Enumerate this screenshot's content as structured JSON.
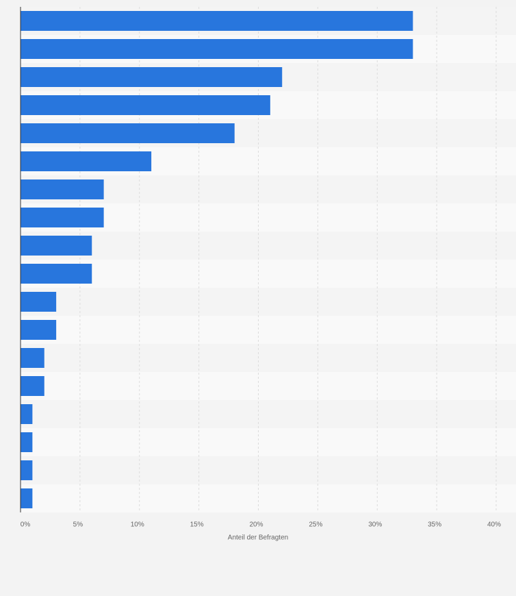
{
  "chart_data": {
    "type": "barh",
    "values": [
      33,
      33,
      22,
      21,
      18,
      11,
      7,
      7,
      6,
      6,
      3,
      3,
      2,
      2,
      1,
      1,
      1,
      1
    ],
    "color": "#2876dd",
    "xlabel": "Anteil der Befragten",
    "xlim": [
      0,
      40
    ],
    "xticks": [
      {
        "value": 0,
        "label": "0%"
      },
      {
        "value": 5,
        "label": "5%"
      },
      {
        "value": 10,
        "label": "10%"
      },
      {
        "value": 15,
        "label": "15%"
      },
      {
        "value": 20,
        "label": "20%"
      },
      {
        "value": 25,
        "label": "25%"
      },
      {
        "value": 30,
        "label": "30%"
      },
      {
        "value": 35,
        "label": "35%"
      },
      {
        "value": 40,
        "label": "40%"
      }
    ],
    "grid": true
  }
}
